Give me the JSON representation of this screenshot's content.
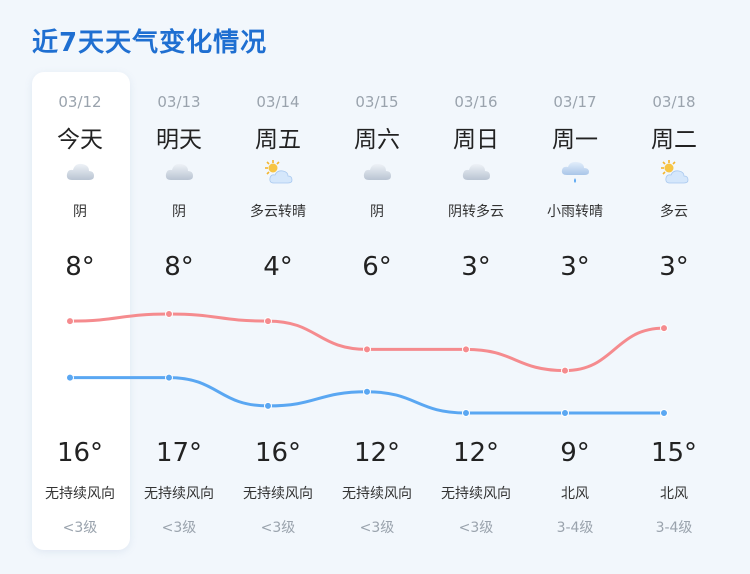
{
  "title": "近7天天气变化情况",
  "colors": {
    "accent": "#1f6fd1",
    "high_line": "#f58b8e",
    "low_line": "#5aa7f2"
  },
  "days": [
    {
      "date": "03/12",
      "weekday": "今天",
      "icon": "cloudy-icon",
      "desc": "阴",
      "low": "8°",
      "high": "16°",
      "wind_dir": "无持续风向",
      "wind_level": "<3级"
    },
    {
      "date": "03/13",
      "weekday": "明天",
      "icon": "cloudy-icon",
      "desc": "阴",
      "low": "8°",
      "high": "17°",
      "wind_dir": "无持续风向",
      "wind_level": "<3级"
    },
    {
      "date": "03/14",
      "weekday": "周五",
      "icon": "partly-cloudy-icon",
      "desc": "多云转晴",
      "low": "4°",
      "high": "16°",
      "wind_dir": "无持续风向",
      "wind_level": "<3级"
    },
    {
      "date": "03/15",
      "weekday": "周六",
      "icon": "cloudy-icon",
      "desc": "阴",
      "low": "6°",
      "high": "12°",
      "wind_dir": "无持续风向",
      "wind_level": "<3级"
    },
    {
      "date": "03/16",
      "weekday": "周日",
      "icon": "cloudy-icon",
      "desc": "阴转多云",
      "low": "3°",
      "high": "12°",
      "wind_dir": "无持续风向",
      "wind_level": "<3级"
    },
    {
      "date": "03/17",
      "weekday": "周一",
      "icon": "light-rain-icon",
      "desc": "小雨转晴",
      "low": "3°",
      "high": "9°",
      "wind_dir": "北风",
      "wind_level": "3-4级"
    },
    {
      "date": "03/18",
      "weekday": "周二",
      "icon": "partly-cloudy-icon",
      "desc": "多云",
      "low": "3°",
      "high": "15°",
      "wind_dir": "北风",
      "wind_level": "3-4级"
    }
  ],
  "chart_data": {
    "type": "line",
    "x": [
      "03/12",
      "03/13",
      "03/14",
      "03/15",
      "03/16",
      "03/17",
      "03/18"
    ],
    "series": [
      {
        "values": [
          16,
          17,
          16,
          12,
          12,
          9,
          15
        ],
        "color": "#f58b8e"
      },
      {
        "values": [
          8,
          8,
          4,
          6,
          3,
          3,
          3
        ],
        "color": "#5aa7f2"
      }
    ]
  }
}
